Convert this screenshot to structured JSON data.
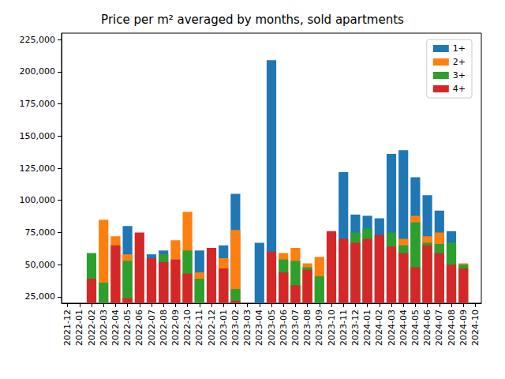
{
  "chart_data": {
    "type": "bar",
    "title": "Price per m² averaged by months, sold apartments",
    "categories": [
      "2021-12",
      "2022-01",
      "2022-02",
      "2022-03",
      "2022-04",
      "2022-05",
      "2022-06",
      "2022-07",
      "2022-08",
      "2022-09",
      "2022-10",
      "2022-11",
      "2022-12",
      "2023-01",
      "2023-02",
      "2023-03",
      "2023-04",
      "2023-05",
      "2023-06",
      "2023-07",
      "2023-08",
      "2023-09",
      "2023-10",
      "2023-11",
      "2023-12",
      "2024-01",
      "2024-02",
      "2024-03",
      "2024-04",
      "2024-05",
      "2024-06",
      "2024-07",
      "2024-08",
      "2024-09",
      "2024-10"
    ],
    "series": [
      {
        "name": "1+",
        "color": "#1f77b4",
        "values": [
          null,
          null,
          null,
          null,
          null,
          80000,
          null,
          58000,
          61000,
          null,
          null,
          61000,
          null,
          65000,
          105000,
          null,
          67000,
          209000,
          null,
          null,
          null,
          null,
          null,
          122000,
          89000,
          88000,
          86000,
          136000,
          139000,
          118000,
          104000,
          92000,
          76000,
          null,
          null
        ]
      },
      {
        "name": "2+",
        "color": "#ff7f0e",
        "values": [
          null,
          null,
          null,
          85000,
          72000,
          58000,
          null,
          null,
          null,
          69000,
          91000,
          44000,
          null,
          55000,
          77000,
          null,
          null,
          null,
          59000,
          63000,
          51000,
          56000,
          null,
          null,
          null,
          null,
          null,
          null,
          70000,
          88000,
          72000,
          75000,
          null,
          51000,
          null
        ]
      },
      {
        "name": "3+",
        "color": "#2ca02c",
        "values": [
          null,
          null,
          59000,
          36000,
          null,
          53000,
          null,
          null,
          58000,
          null,
          61000,
          39000,
          null,
          null,
          31000,
          null,
          null,
          null,
          54000,
          53000,
          48000,
          41000,
          null,
          null,
          75000,
          78000,
          null,
          75000,
          65000,
          83000,
          67000,
          66000,
          67000,
          50000,
          null
        ]
      },
      {
        "name": "4+",
        "color": "#d62728",
        "values": [
          null,
          null,
          39000,
          null,
          65000,
          24000,
          75000,
          55000,
          52000,
          54000,
          43000,
          null,
          63000,
          47000,
          22000,
          null,
          null,
          60000,
          44000,
          34000,
          46000,
          null,
          76000,
          70000,
          67000,
          70000,
          73000,
          64000,
          59000,
          48000,
          65000,
          59000,
          50000,
          47000,
          null
        ]
      }
    ],
    "ylim": [
      20000,
      230000
    ],
    "yticks": [
      25000,
      50000,
      75000,
      100000,
      125000,
      150000,
      175000,
      200000,
      225000
    ],
    "stacked": false,
    "grid": false,
    "legend": "upper right"
  }
}
